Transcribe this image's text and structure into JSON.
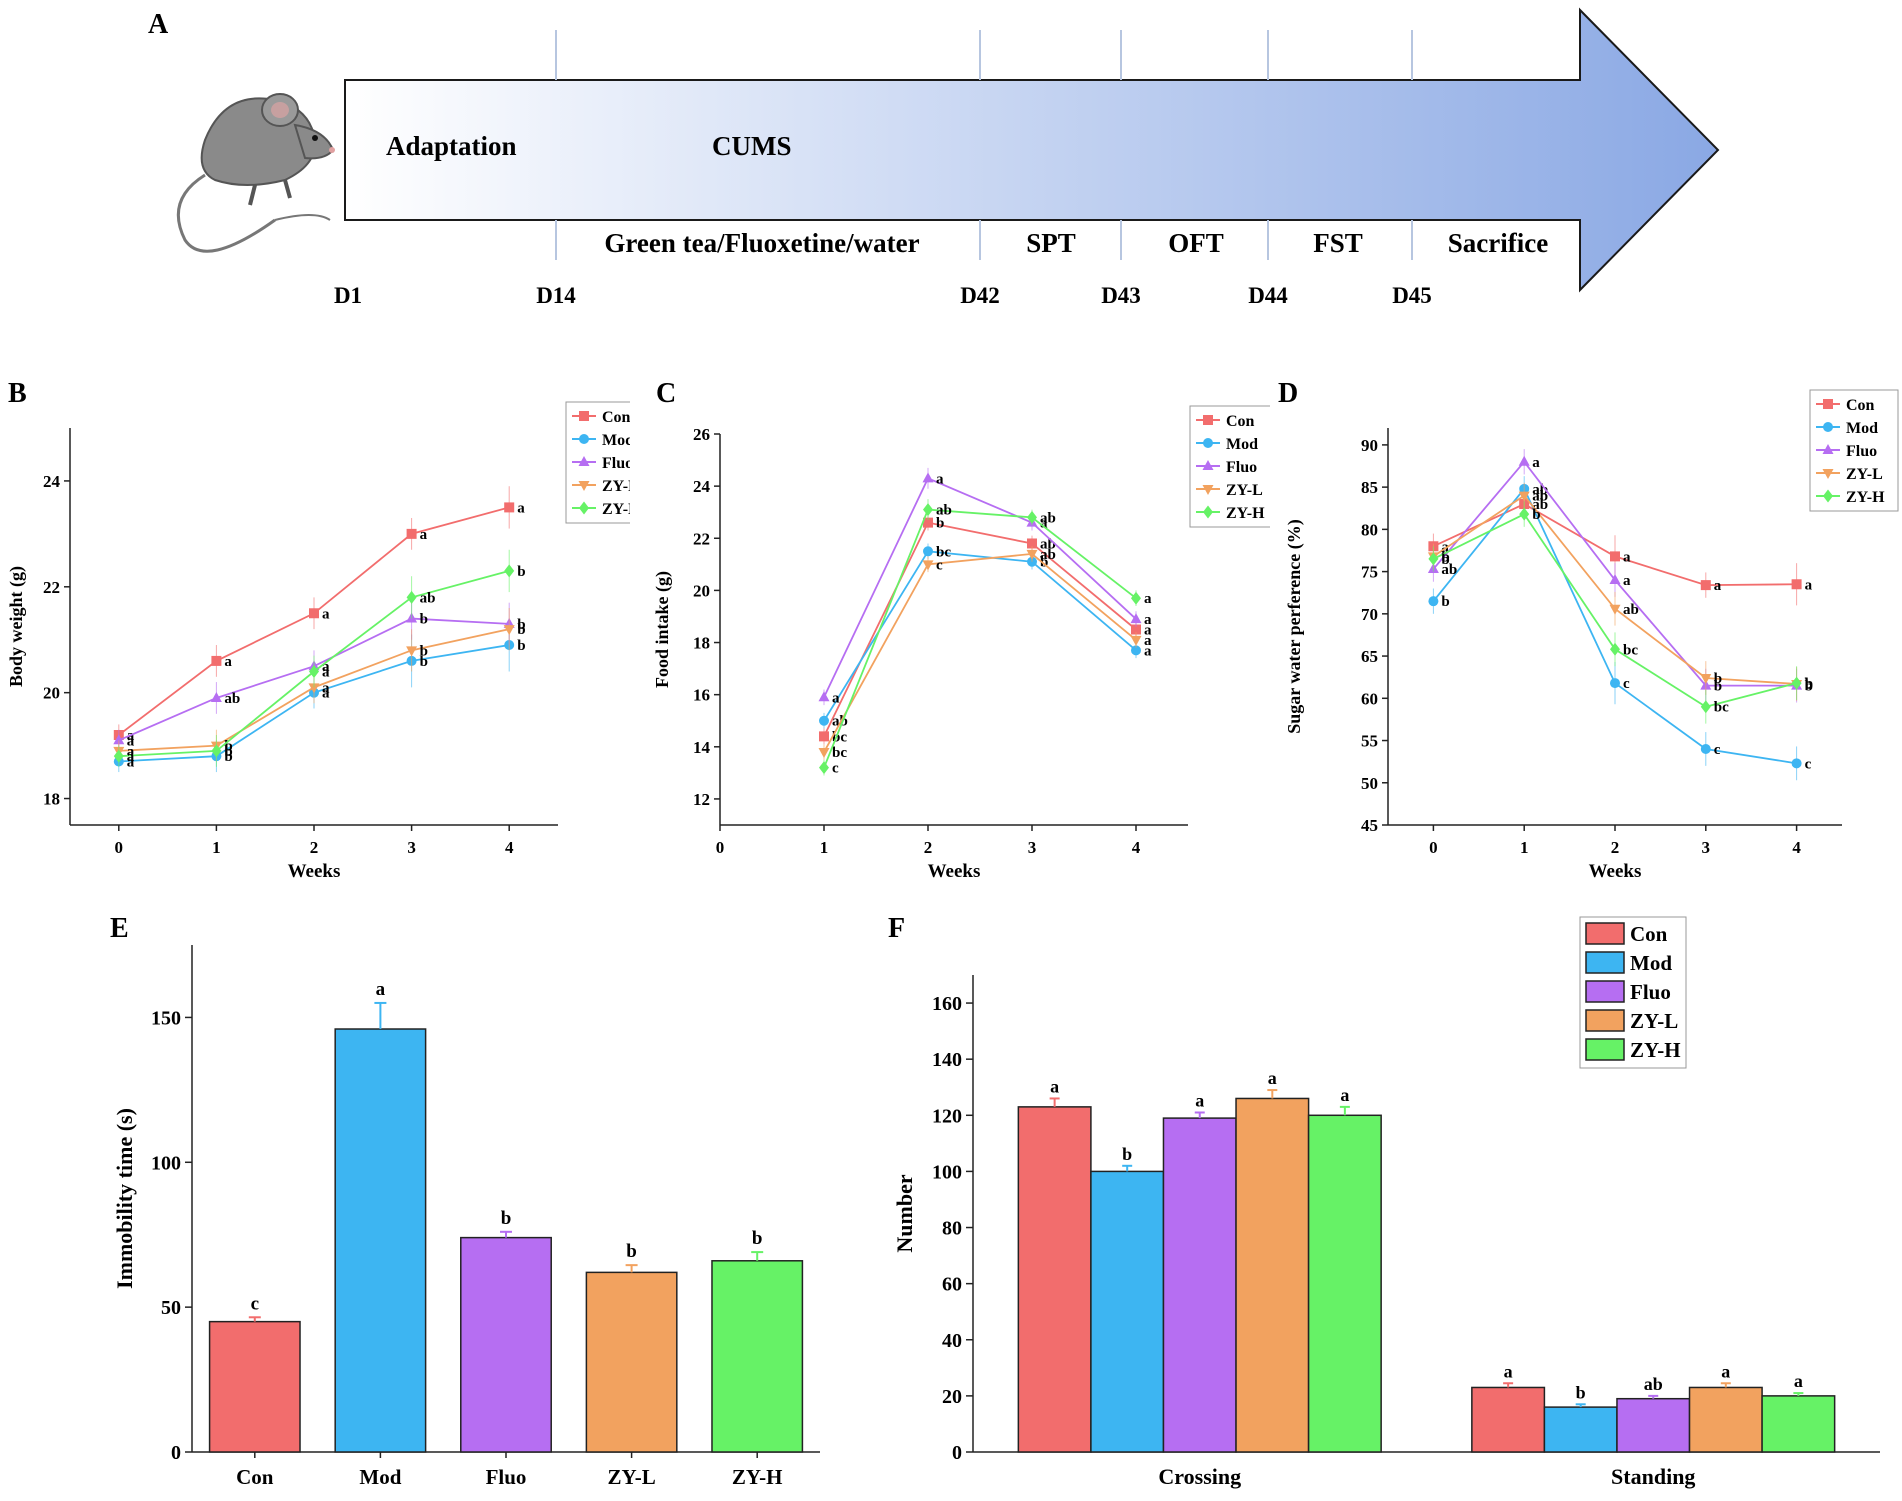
{
  "panel_a": {
    "letter": "A",
    "phase_adaptation": "Adaptation",
    "phase_cums": "CUMS",
    "below_labels": [
      "Green tea/Fluoxetine/water",
      "SPT",
      "OFT",
      "FST",
      "Sacrifice"
    ],
    "days": [
      "D1",
      "D14",
      "D42",
      "D43",
      "D44",
      "D45"
    ],
    "mouse_icon": "mouse-icon",
    "arrow_color": "#8aa8e4"
  },
  "colors": {
    "Con": "#f26d6d",
    "Mod": "#3db5f2",
    "Fluo": "#b66ef2",
    "ZY-L": "#f2a25f",
    "ZY-H": "#66f266"
  },
  "chart_data": [
    {
      "id": "B",
      "type": "line",
      "letter": "B",
      "xlabel": "Weeks",
      "ylabel": "Body weight (g)",
      "x": [
        0,
        1,
        2,
        3,
        4
      ],
      "xlim": [
        -0.5,
        4.5
      ],
      "ylim": [
        17.5,
        25
      ],
      "xticks": [
        0,
        1,
        2,
        3,
        4
      ],
      "yticks": [
        18,
        20,
        22,
        24
      ],
      "legend": [
        "Con",
        "Mod",
        "Fluo",
        "ZY-L",
        "ZY-H"
      ],
      "series": [
        {
          "name": "Con",
          "marker": "square",
          "values": [
            19.2,
            20.6,
            21.5,
            23.0,
            23.5
          ],
          "errors": [
            0.2,
            0.3,
            0.3,
            0.3,
            0.4
          ],
          "labels": [
            "a",
            "a",
            "a",
            "a",
            "a"
          ]
        },
        {
          "name": "Mod",
          "marker": "circle",
          "values": [
            18.7,
            18.8,
            20.0,
            20.6,
            20.9
          ],
          "errors": [
            0.2,
            0.3,
            0.3,
            0.5,
            0.5
          ],
          "labels": [
            "a",
            "b",
            "a",
            "b",
            "b"
          ]
        },
        {
          "name": "Fluo",
          "marker": "triangle",
          "values": [
            19.1,
            19.9,
            20.5,
            21.4,
            21.3
          ],
          "errors": [
            0.2,
            0.3,
            0.3,
            0.4,
            0.4
          ],
          "labels": [
            "a",
            "ab",
            "a",
            "b",
            "b"
          ]
        },
        {
          "name": "ZY-L",
          "marker": "triangle-down",
          "values": [
            18.9,
            19.0,
            20.1,
            20.8,
            21.2
          ],
          "errors": [
            0.2,
            0.3,
            0.3,
            0.4,
            0.4
          ],
          "labels": [
            "a",
            "b",
            "a",
            "b",
            "b"
          ]
        },
        {
          "name": "ZY-H",
          "marker": "diamond",
          "values": [
            18.8,
            18.9,
            20.4,
            21.8,
            22.3
          ],
          "errors": [
            0.2,
            0.3,
            0.3,
            0.4,
            0.4
          ],
          "labels": [
            "a",
            "b",
            "a",
            "ab",
            "b"
          ]
        }
      ]
    },
    {
      "id": "C",
      "type": "line",
      "letter": "C",
      "xlabel": "Weeks",
      "ylabel": "Food intake (g)",
      "x": [
        1,
        2,
        3,
        4
      ],
      "xlim": [
        0,
        4.5
      ],
      "ylim": [
        11,
        26
      ],
      "xticks": [
        0,
        1,
        2,
        3,
        4
      ],
      "yticks": [
        12,
        14,
        16,
        18,
        20,
        22,
        24,
        26
      ],
      "legend": [
        "Con",
        "Mod",
        "Fluo",
        "ZY-L",
        "ZY-H"
      ],
      "series": [
        {
          "name": "Con",
          "marker": "square",
          "values": [
            14.4,
            22.6,
            21.8,
            18.5
          ],
          "errors": [
            0.3,
            0.3,
            0.3,
            0.3
          ],
          "labels": [
            "bc",
            "b",
            "ab",
            "a"
          ]
        },
        {
          "name": "Mod",
          "marker": "circle",
          "values": [
            15.0,
            21.5,
            21.1,
            17.7
          ],
          "errors": [
            0.3,
            0.3,
            0.3,
            0.3
          ],
          "labels": [
            "ab",
            "bc",
            "b",
            "a"
          ]
        },
        {
          "name": "Fluo",
          "marker": "triangle",
          "values": [
            15.9,
            24.3,
            22.6,
            18.9
          ],
          "errors": [
            0.3,
            0.4,
            0.3,
            0.3
          ],
          "labels": [
            "a",
            "a",
            "a",
            "a"
          ]
        },
        {
          "name": "ZY-L",
          "marker": "triangle-down",
          "values": [
            13.8,
            21.0,
            21.4,
            18.1
          ],
          "errors": [
            0.3,
            0.3,
            0.3,
            0.3
          ],
          "labels": [
            "bc",
            "c",
            "ab",
            "a"
          ]
        },
        {
          "name": "ZY-H",
          "marker": "diamond",
          "values": [
            13.2,
            23.1,
            22.8,
            19.7
          ],
          "errors": [
            0.3,
            0.4,
            0.3,
            0.3
          ],
          "labels": [
            "c",
            "ab",
            "ab",
            "a"
          ]
        }
      ]
    },
    {
      "id": "D",
      "type": "line",
      "letter": "D",
      "xlabel": "Weeks",
      "ylabel": "Sugar water perference (%)",
      "x": [
        0,
        1,
        2,
        3,
        4
      ],
      "xlim": [
        -0.5,
        4.5
      ],
      "ylim": [
        45,
        92
      ],
      "xticks": [
        0,
        1,
        2,
        3,
        4
      ],
      "yticks": [
        45,
        50,
        55,
        60,
        65,
        70,
        75,
        80,
        85,
        90
      ],
      "legend": [
        "Con",
        "Mod",
        "Fluo",
        "ZY-L",
        "ZY-H"
      ],
      "series": [
        {
          "name": "Con",
          "marker": "square",
          "values": [
            78.0,
            83.0,
            76.8,
            73.4,
            73.5
          ],
          "errors": [
            1.5,
            1.5,
            2.5,
            1.5,
            2.5
          ],
          "labels": [
            "a",
            "ab",
            "a",
            "a",
            "a"
          ]
        },
        {
          "name": "Mod",
          "marker": "circle",
          "values": [
            71.5,
            84.8,
            61.8,
            54.0,
            52.3
          ],
          "errors": [
            1.5,
            1.5,
            2.5,
            2.0,
            2.0
          ],
          "labels": [
            "b",
            "ab",
            "c",
            "c",
            "c"
          ]
        },
        {
          "name": "Fluo",
          "marker": "triangle",
          "values": [
            75.3,
            88.0,
            74.0,
            61.5,
            61.5
          ],
          "errors": [
            1.5,
            1.5,
            2.0,
            2.0,
            2.0
          ],
          "labels": [
            "ab",
            "a",
            "a",
            "b",
            "b"
          ]
        },
        {
          "name": "ZY-L",
          "marker": "triangle-down",
          "values": [
            76.8,
            84.0,
            70.6,
            62.4,
            61.7
          ],
          "errors": [
            1.5,
            1.5,
            2.0,
            2.0,
            2.0
          ],
          "labels": [
            "b",
            "ab",
            "ab",
            "b",
            "b"
          ]
        },
        {
          "name": "ZY-H",
          "marker": "diamond",
          "values": [
            76.5,
            81.8,
            65.8,
            59.0,
            61.8
          ],
          "errors": [
            1.5,
            1.5,
            2.0,
            2.0,
            2.0
          ],
          "labels": [
            "b",
            "b",
            "bc",
            "bc",
            "b"
          ]
        }
      ]
    },
    {
      "id": "E",
      "type": "bar",
      "letter": "E",
      "xlabel": "",
      "ylabel": "Immobility time (s)",
      "categories": [
        "Con",
        "Mod",
        "Fluo",
        "ZY-L",
        "ZY-H"
      ],
      "values": [
        45,
        146,
        74,
        62,
        66
      ],
      "errors": [
        1.5,
        9,
        2,
        2.5,
        3
      ],
      "labels": [
        "c",
        "a",
        "b",
        "b",
        "b"
      ],
      "ylim": [
        0,
        175
      ],
      "yticks": [
        0,
        50,
        100,
        150
      ]
    },
    {
      "id": "F",
      "type": "bar",
      "letter": "F",
      "xlabel": "",
      "ylabel": "Number",
      "categories": [
        "Crossing",
        "Standing"
      ],
      "legend": [
        "Con",
        "Mod",
        "Fluo",
        "ZY-L",
        "ZY-H"
      ],
      "series": [
        {
          "name": "Con",
          "values": [
            123,
            23
          ],
          "errors": [
            3,
            1.5
          ],
          "labels": [
            "a",
            "a"
          ]
        },
        {
          "name": "Mod",
          "values": [
            100,
            16
          ],
          "errors": [
            2,
            1
          ],
          "labels": [
            "b",
            "b"
          ]
        },
        {
          "name": "Fluo",
          "values": [
            119,
            19
          ],
          "errors": [
            2,
            1
          ],
          "labels": [
            "a",
            "ab"
          ]
        },
        {
          "name": "ZY-L",
          "values": [
            126,
            23
          ],
          "errors": [
            3,
            1.5
          ],
          "labels": [
            "a",
            "a"
          ]
        },
        {
          "name": "ZY-H",
          "values": [
            120,
            20
          ],
          "errors": [
            3,
            1
          ],
          "labels": [
            "a",
            "a"
          ]
        }
      ],
      "ylim": [
        0,
        170
      ],
      "yticks": [
        0,
        20,
        40,
        60,
        80,
        100,
        120,
        140,
        160
      ]
    }
  ]
}
